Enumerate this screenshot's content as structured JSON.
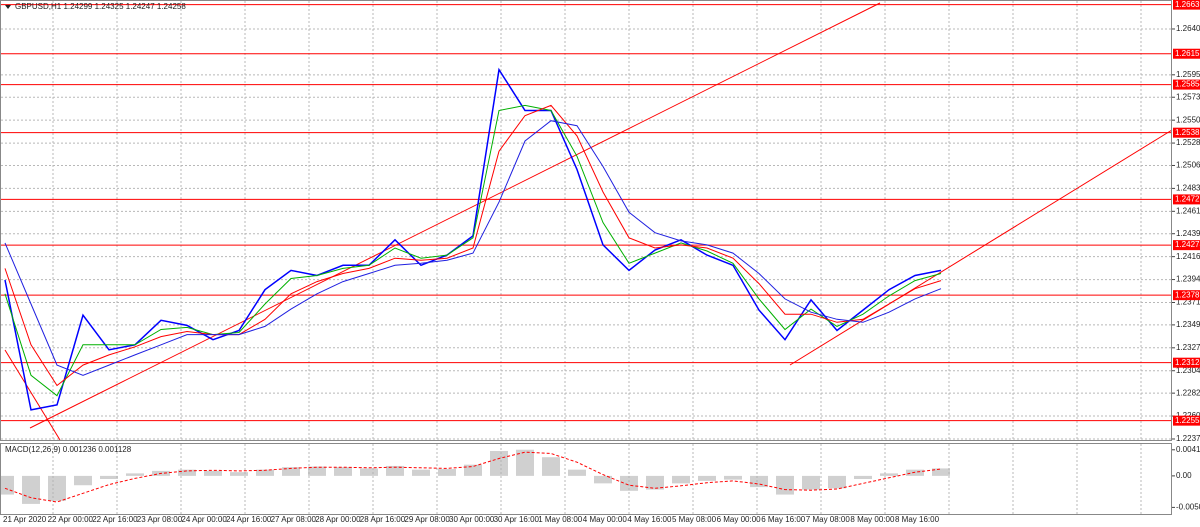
{
  "chart_data": [
    {
      "type": "line",
      "title": "GBPUSD,H1  1.24299 1.24325 1.24247 1.24258",
      "xlabels": [
        "21 Apr 2020",
        "22 Apr 00:00",
        "22 Apr 16:00",
        "23 Apr 08:00",
        "24 Apr 00:00",
        "24 Apr 16:00",
        "27 Apr 08:00",
        "28 Apr 00:00",
        "28 Apr 16:00",
        "29 Apr 08:00",
        "30 Apr 00:00",
        "30 Apr 16:00",
        "1 May 08:00",
        "4 May 00:00",
        "4 May 16:00",
        "5 May 08:00",
        "6 May 00:00",
        "6 May 16:00",
        "7 May 08:00",
        "8 May 00:00",
        "8 May 16:00"
      ],
      "ylim": [
        1.22365,
        1.26655
      ],
      "yticks": [
        {
          "value": 1.264,
          "label": "1.26400"
        },
        {
          "value": 1.2595,
          "label": "1.25950"
        },
        {
          "value": 1.2573,
          "label": "1.25730"
        },
        1.25505,
        {
          "value": 1.2528,
          "label": "1.25280"
        },
        {
          "value": 1.2506,
          "label": "1.25060"
        },
        1.24835,
        {
          "value": 1.2461,
          "label": "1.24610"
        },
        {
          "value": 1.2439,
          "label": "1.24390"
        },
        1.24165,
        {
          "value": 1.2394,
          "label": "1.23940"
        },
        1.23715,
        1.23495,
        {
          "value": 1.2327,
          "label": "1.23270"
        },
        1.23045,
        1.22825,
        {
          "value": 1.226,
          "label": "1.22600"
        },
        1.22375
      ],
      "levels": [
        1.26639,
        1.26157,
        1.25854,
        1.25382,
        1.24727,
        1.24278,
        1.23787,
        1.23124,
        1.22555
      ],
      "level_color": "#ff0000",
      "grid": true,
      "series": [
        {
          "color": "#0000ff",
          "values": [
            1.23936,
            1.2266,
            1.2271,
            1.2359,
            1.2325,
            1.233,
            1.2354,
            1.2349,
            1.2335,
            1.2344,
            1.2384,
            1.2403,
            1.2398,
            1.2408,
            1.2408,
            1.2433,
            1.2408,
            1.2418,
            1.2437,
            1.26,
            1.256,
            1.256,
            1.2502,
            1.2428,
            1.2403,
            1.2423,
            1.2433,
            1.2418,
            1.2408,
            1.2364,
            1.2335,
            1.2374,
            1.2344,
            1.2364,
            1.2384,
            1.2398,
            1.2403
          ]
        },
        {
          "color": "#00b000",
          "values": [
            1.238,
            1.23,
            1.228,
            1.233,
            1.233,
            1.233,
            1.2345,
            1.2347,
            1.234,
            1.2342,
            1.237,
            1.2395,
            1.2398,
            1.2405,
            1.2408,
            1.2425,
            1.2415,
            1.2418,
            1.2435,
            1.256,
            1.2565,
            1.256,
            1.2515,
            1.245,
            1.241,
            1.242,
            1.243,
            1.2422,
            1.241,
            1.2375,
            1.2345,
            1.2365,
            1.2348,
            1.236,
            1.2378,
            1.2393,
            1.24
          ]
        },
        {
          "color": "#ff0000",
          "values": [
            1.2405,
            1.233,
            1.229,
            1.231,
            1.232,
            1.2328,
            1.2338,
            1.2343,
            1.234,
            1.234,
            1.2355,
            1.238,
            1.2392,
            1.24,
            1.2405,
            1.2415,
            1.2413,
            1.2415,
            1.2425,
            1.252,
            1.2555,
            1.2565,
            1.2535,
            1.248,
            1.2435,
            1.2425,
            1.2428,
            1.2425,
            1.2415,
            1.239,
            1.236,
            1.236,
            1.2352,
            1.2355,
            1.237,
            1.2385,
            1.2393
          ]
        },
        {
          "color": "#2020e0",
          "values": [
            1.243,
            1.237,
            1.231,
            1.23,
            1.231,
            1.232,
            1.233,
            1.234,
            1.234,
            1.234,
            1.2348,
            1.2365,
            1.238,
            1.2392,
            1.24,
            1.2408,
            1.241,
            1.2413,
            1.242,
            1.247,
            1.253,
            1.255,
            1.2545,
            1.2505,
            1.246,
            1.244,
            1.2432,
            1.2428,
            1.242,
            1.24,
            1.2375,
            1.2362,
            1.2355,
            1.2352,
            1.2362,
            1.2375,
            1.2385
          ]
        }
      ]
    },
    {
      "type": "macd",
      "title": "MACD(12,26,9) 0.001236 0.001128",
      "ylim": [
        -0.0058,
        0.0048
      ],
      "yticks": [
        0.004191,
        {
          "value": 0,
          "label": "0.00"
        },
        -0.00506
      ],
      "series": [
        {
          "type": "bar",
          "color": "#b0b0b0",
          "values": [
            -0.003,
            -0.0045,
            -0.004,
            -0.0015,
            -0.0005,
            0.0004,
            0.0008,
            0.001,
            0.0008,
            0.0006,
            0.001,
            0.0014,
            0.0015,
            0.0014,
            0.0012,
            0.0016,
            0.001,
            0.0011,
            0.0018,
            0.004,
            0.0042,
            0.003,
            0.001,
            -0.0012,
            -0.0024,
            -0.0022,
            -0.0012,
            -0.0008,
            -0.0006,
            -0.0018,
            -0.003,
            -0.0022,
            -0.002,
            -0.0005,
            0.0004,
            0.001,
            0.0012
          ]
        },
        {
          "type": "line",
          "color": "#ff0000",
          "values": [
            -0.002,
            -0.0035,
            -0.0042,
            -0.0028,
            -0.0014,
            -0.0004,
            0.0004,
            0.0008,
            0.0009,
            0.0008,
            0.0009,
            0.0012,
            0.0014,
            0.0014,
            0.0013,
            0.0014,
            0.0013,
            0.0012,
            0.0015,
            0.0028,
            0.0038,
            0.0036,
            0.0022,
            0.0002,
            -0.0015,
            -0.002,
            -0.0016,
            -0.0011,
            -0.0008,
            -0.0013,
            -0.0022,
            -0.0023,
            -0.0021,
            -0.0012,
            -0.0003,
            0.0006,
            0.0011
          ]
        }
      ]
    }
  ]
}
